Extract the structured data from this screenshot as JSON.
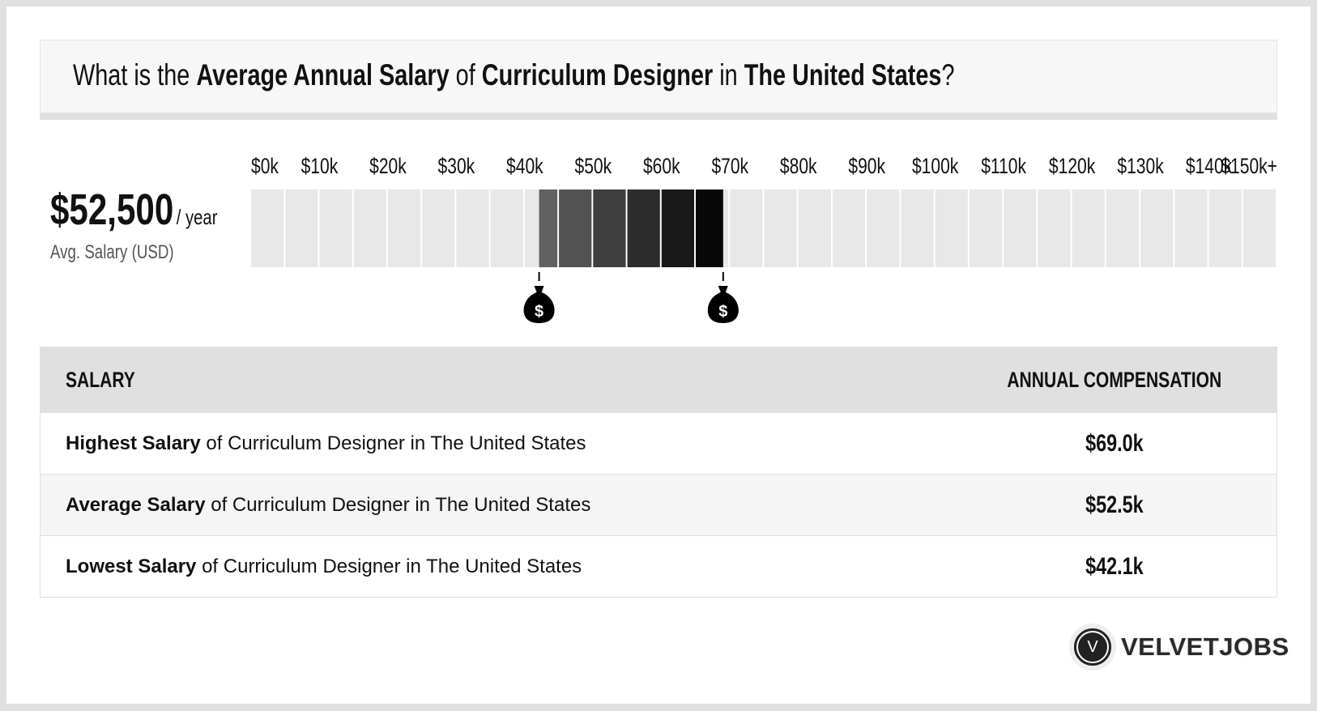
{
  "title": {
    "p1": "What is the ",
    "b1": "Average Annual Salary",
    "p2": " of ",
    "b2": "Curriculum Designer",
    "p3": " in ",
    "b3": "The United States",
    "p4": "?"
  },
  "summary": {
    "value": "$52,500",
    "unit": "/ year",
    "label": "Avg. Salary (USD)"
  },
  "chart_data": {
    "type": "range-bar",
    "tick_labels": [
      "$0k",
      "$10k",
      "$20k",
      "$30k",
      "$40k",
      "$50k",
      "$60k",
      "$70k",
      "$80k",
      "$90k",
      "$100k",
      "$110k",
      "$120k",
      "$130k",
      "$140k",
      "$150k+"
    ],
    "xlim": [
      0,
      150000
    ],
    "range": {
      "low": 42100,
      "high": 69000,
      "average": 52500
    },
    "markers": [
      "money-bag-icon",
      "money-bag-icon"
    ],
    "colors": {
      "empty": "#e8e8e8",
      "range_start": "#666666",
      "range_end": "#000000"
    }
  },
  "table": {
    "headers": [
      "SALARY",
      "ANNUAL COMPENSATION"
    ],
    "rows": [
      {
        "bold": "Highest Salary",
        "rest": " of Curriculum Designer in The United States",
        "value": "$69.0k"
      },
      {
        "bold": "Average Salary",
        "rest": " of Curriculum Designer in The United States",
        "value": "$52.5k"
      },
      {
        "bold": "Lowest Salary",
        "rest": " of Curriculum Designer in The United States",
        "value": "$42.1k"
      }
    ]
  },
  "logo": {
    "text": "VELVETJOBS",
    "letter": "V"
  }
}
